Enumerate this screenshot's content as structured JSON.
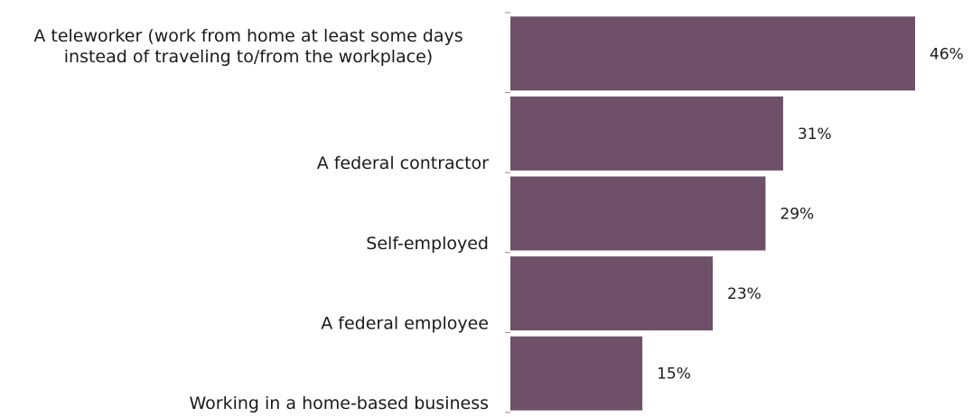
{
  "chart_data": {
    "type": "bar",
    "orientation": "horizontal",
    "title": "",
    "xlabel": "",
    "ylabel": "",
    "categories": [
      "A teleworker (work from home at least some days instead of traveling to/from the workplace)",
      "A federal contractor",
      "Self-employed",
      "A federal employee",
      "Working in a home-based business"
    ],
    "category_lines": [
      [
        "A teleworker (work from home at least some days",
        "instead of traveling to/from the workplace)"
      ],
      [
        "A federal contractor"
      ],
      [
        "Self-employed"
      ],
      [
        "A federal employee"
      ],
      [
        "Working in a home-based business"
      ]
    ],
    "values": [
      46,
      31,
      29,
      23,
      15
    ],
    "value_labels": [
      "46%",
      "31%",
      "29%",
      "23%",
      "15%"
    ],
    "unit": "%",
    "xlim": [
      0,
      46
    ],
    "grid": false,
    "legend": "none",
    "bar_color": "#6e5068"
  }
}
